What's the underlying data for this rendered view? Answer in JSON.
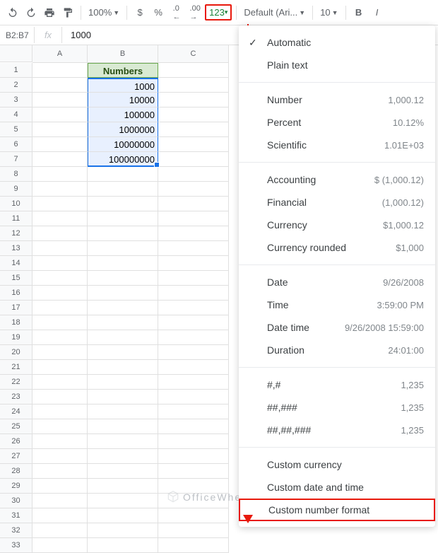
{
  "toolbar": {
    "zoom": "100%",
    "currency": "$",
    "percent": "%",
    "dec_remove": ".0",
    "dec_add": ".00",
    "format_btn": "123",
    "font": "Default (Ari...",
    "font_size": "10",
    "bold": "B",
    "italic": "I"
  },
  "formula": {
    "name_box": "B2:B7",
    "fx": "fx",
    "value": "1000"
  },
  "columns": {
    "a": "A",
    "b": "B",
    "c": "C"
  },
  "header_cell": "Numbers",
  "data": [
    "1000",
    "10000",
    "100000",
    "1000000",
    "10000000",
    "100000000"
  ],
  "row_count": 33,
  "menu": {
    "automatic": "Automatic",
    "plain": "Plain text",
    "number": {
      "l": "Number",
      "e": "1,000.12"
    },
    "percent": {
      "l": "Percent",
      "e": "10.12%"
    },
    "scientific": {
      "l": "Scientific",
      "e": "1.01E+03"
    },
    "accounting": {
      "l": "Accounting",
      "e": "$ (1,000.12)"
    },
    "financial": {
      "l": "Financial",
      "e": "(1,000.12)"
    },
    "currency": {
      "l": "Currency",
      "e": "$1,000.12"
    },
    "currency_r": {
      "l": "Currency rounded",
      "e": "$1,000"
    },
    "date": {
      "l": "Date",
      "e": "9/26/2008"
    },
    "time": {
      "l": "Time",
      "e": "3:59:00 PM"
    },
    "datetime": {
      "l": "Date time",
      "e": "9/26/2008 15:59:00"
    },
    "duration": {
      "l": "Duration",
      "e": "24:01:00"
    },
    "p1": {
      "l": "#,#",
      "e": "1,235"
    },
    "p2": {
      "l": "##,###",
      "e": "1,235"
    },
    "p3": {
      "l": "##,##,###",
      "e": "1,235"
    },
    "cc": "Custom currency",
    "cdt": "Custom date and time",
    "cnf": "Custom number format"
  },
  "watermark": "OfficeWheel"
}
